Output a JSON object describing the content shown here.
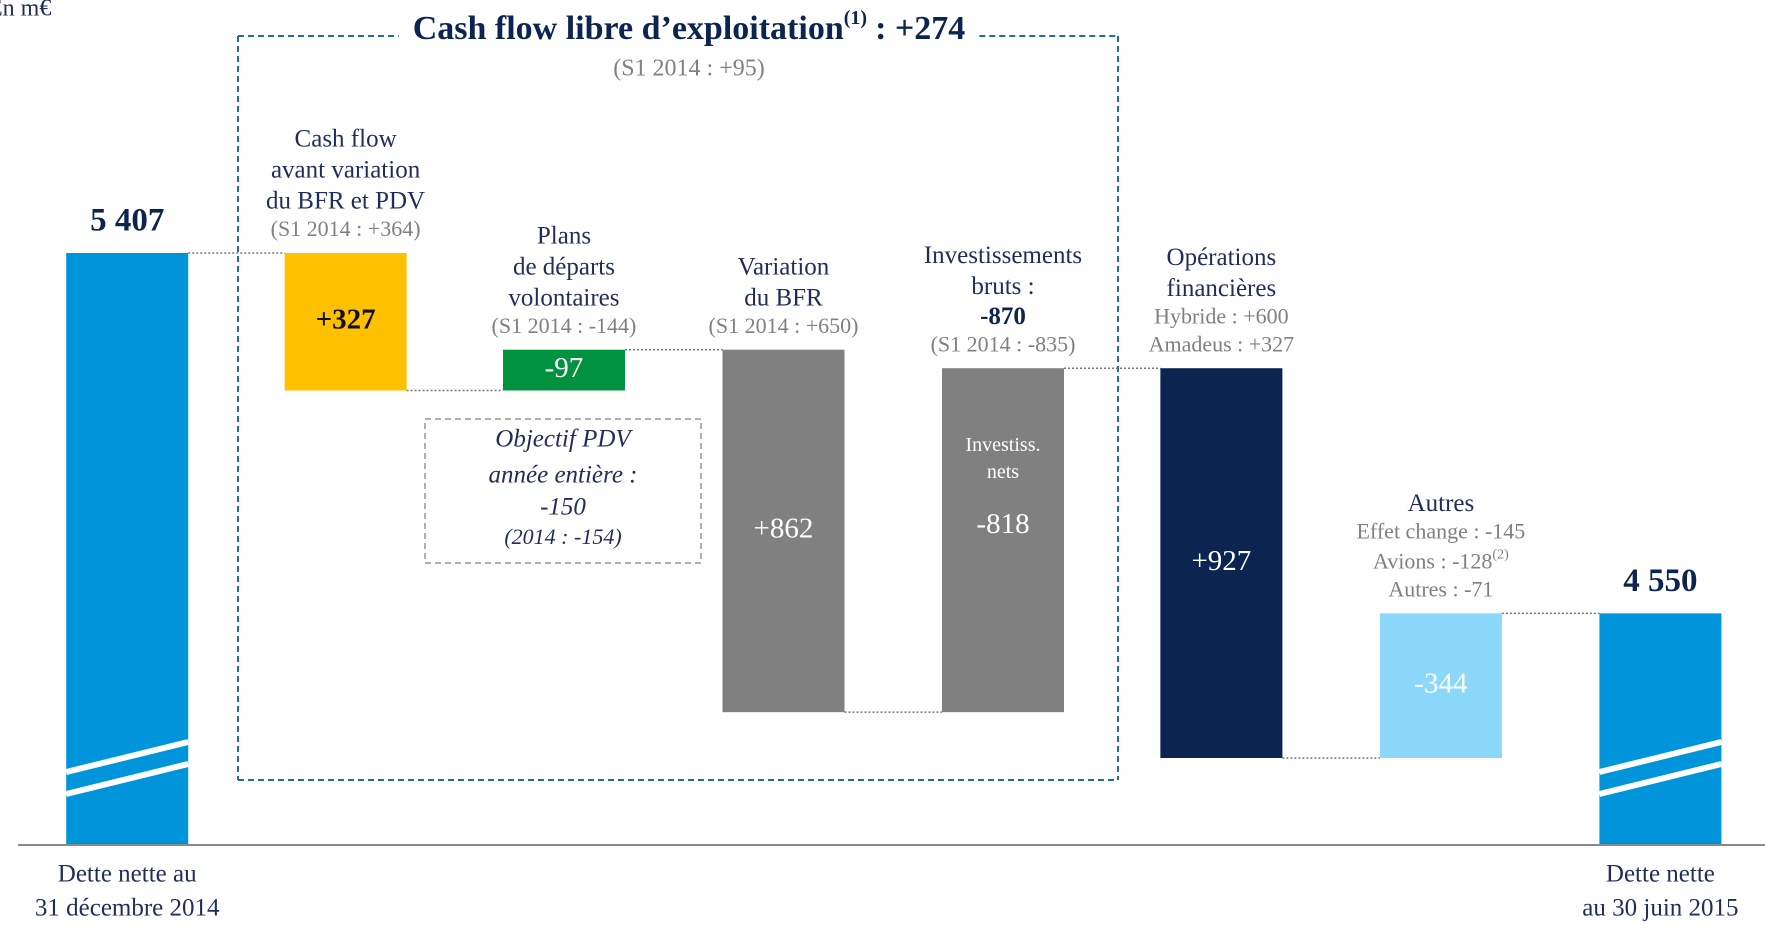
{
  "chart_data": {
    "type": "waterfall",
    "unit_label": "En m€",
    "title": "Cash flow libre d’exploitation",
    "title_note": "(1)",
    "title_suffix": ": +274",
    "subtitle": "(S1 2014 : +95)",
    "categories": [
      [
        "Dette nette au",
        "31 décembre 2014"
      ],
      [
        "Cash flow",
        "avant variation",
        "du BFR et PDV"
      ],
      [
        "Plans",
        "de départs",
        "volontaires"
      ],
      [
        "Variation",
        "du BFR"
      ],
      [
        "Investissements",
        "bruts :"
      ],
      [
        "Opérations",
        "financières"
      ],
      [
        "Autres"
      ],
      [
        "Dette nette",
        "au 30 juin 2015"
      ]
    ],
    "notes": [
      [],
      [
        "(S1 2014 : +364)"
      ],
      [
        "(S1 2014 : -144)"
      ],
      [
        "(S1 2014 : +650)"
      ],
      [
        {
          "text": "-870",
          "bold": true
        },
        "(S1 2014 : -835)"
      ],
      [
        "Hybride : +600",
        "Amadeus : +327"
      ],
      [
        "Effet change : -145",
        {
          "text": "Avions : -128",
          "sup": "(2)"
        },
        "Autres : -71"
      ],
      []
    ],
    "measure": [
      "absolute",
      "relative",
      "relative",
      "relative",
      "relative",
      "relative",
      "relative",
      "absolute"
    ],
    "values": [
      5407,
      327,
      -97,
      862,
      -818,
      927,
      -344,
      4550
    ],
    "value_labels": [
      "5 407",
      "+327",
      "-97",
      "+862",
      "-818",
      "+927",
      "-344",
      "4 550"
    ],
    "colors": [
      "#0095da",
      "#ffc000",
      "#00923f",
      "#808080",
      "#808080",
      "#0b2550",
      "#8cd8fa",
      "#0095da"
    ],
    "value_label_colors": [
      "#0b2550",
      "#111111",
      "#ffffff",
      "#ffffff",
      "#ffffff",
      "#ffffff",
      "#ffffff",
      "#0b2550"
    ],
    "inner_labels": [
      null,
      null,
      null,
      null,
      [
        "Investiss.",
        "nets"
      ],
      null,
      null,
      null
    ],
    "objective_box": [
      "Objectif PDV",
      "année entière :",
      "-150",
      "(2014 : -154)"
    ]
  }
}
